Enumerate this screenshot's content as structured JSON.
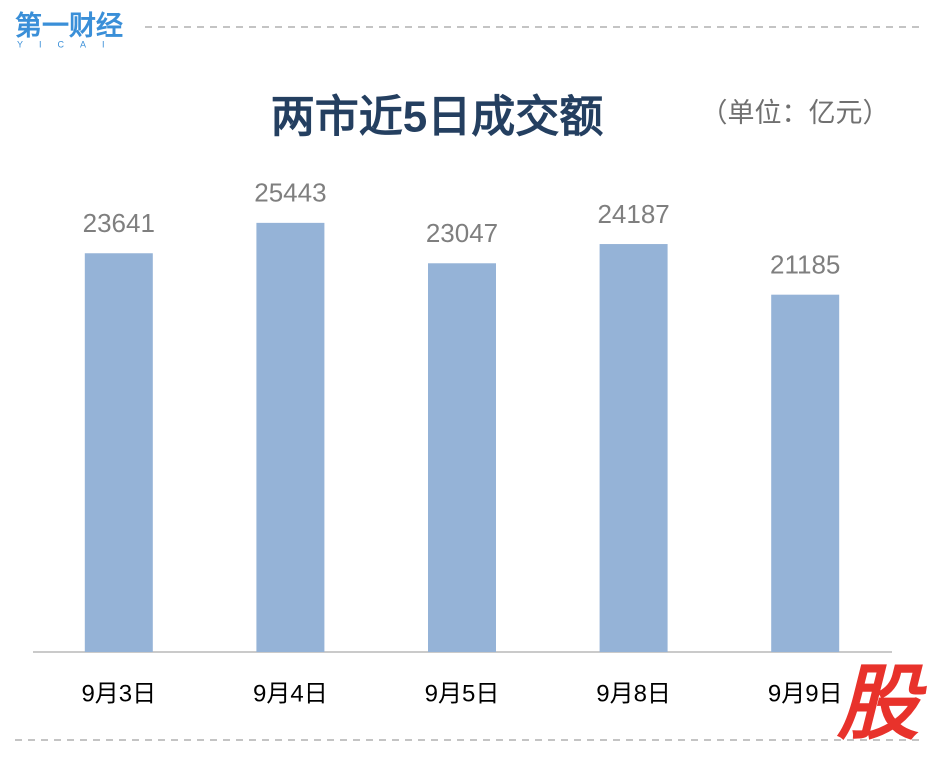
{
  "logo": {
    "name": "第一财经",
    "sub": "YICAI"
  },
  "watermark": "股",
  "chart_data": {
    "type": "bar",
    "title": "两市近5日成交额",
    "subtitle": "（单位：亿元）",
    "categories": [
      "9月3日",
      "9月4日",
      "9月5日",
      "9月8日",
      "9月9日"
    ],
    "values": [
      23641,
      25443,
      23047,
      24187,
      21185
    ],
    "color": "#95b3d7",
    "ylim": [
      0,
      30000
    ],
    "grid": false
  }
}
